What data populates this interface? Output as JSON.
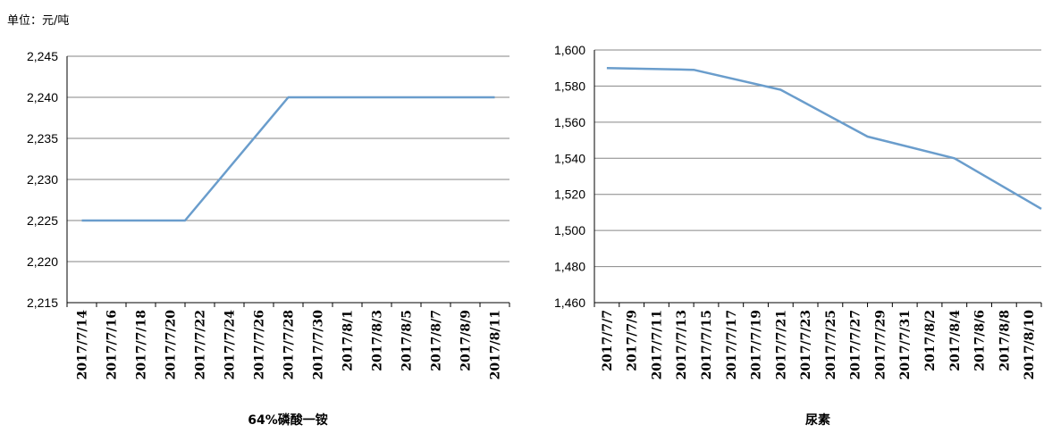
{
  "unit_label": "单位：元/吨",
  "colors": {
    "line": "#6a9dcc",
    "grid": "#868686",
    "axis": "#000000"
  },
  "chart_data": [
    {
      "type": "line",
      "title": "64%磷酸一铵",
      "xlabel": "",
      "ylabel": "",
      "ylim": [
        2215,
        2245
      ],
      "yticks": [
        "2,215",
        "2,220",
        "2,225",
        "2,230",
        "2,235",
        "2,240",
        "2,245"
      ],
      "ytick_values": [
        2215,
        2220,
        2225,
        2230,
        2235,
        2240,
        2245
      ],
      "categories": [
        "2017/7/14",
        "2017/7/16",
        "2017/7/18",
        "2017/7/20",
        "2017/7/22",
        "2017/7/24",
        "2017/7/26",
        "2017/7/28",
        "2017/7/30",
        "2017/8/1",
        "2017/8/3",
        "2017/8/5",
        "2017/8/7",
        "2017/8/9",
        "2017/8/11"
      ],
      "series": [
        {
          "x": [
            "2017/7/14",
            "2017/7/21",
            "2017/7/28",
            "2017/8/11"
          ],
          "values": [
            2225,
            2225,
            2240,
            2240
          ]
        }
      ],
      "grid": true
    },
    {
      "type": "line",
      "title": "尿素",
      "xlabel": "",
      "ylabel": "",
      "ylim": [
        1460,
        1600
      ],
      "yticks": [
        "1,460",
        "1,480",
        "1,500",
        "1,520",
        "1,540",
        "1,560",
        "1,580",
        "1,600"
      ],
      "ytick_values": [
        1460,
        1480,
        1500,
        1520,
        1540,
        1560,
        1580,
        1600
      ],
      "categories": [
        "2017/7/7",
        "2017/7/9",
        "2017/7/11",
        "2017/7/13",
        "2017/7/15",
        "2017/7/17",
        "2017/7/19",
        "2017/7/21",
        "2017/7/23",
        "2017/7/25",
        "2017/7/27",
        "2017/7/29",
        "2017/7/31",
        "2017/8/2",
        "2017/8/4",
        "2017/8/6",
        "2017/8/8",
        "2017/8/10"
      ],
      "series": [
        {
          "x": [
            "2017/7/7",
            "2017/7/14",
            "2017/7/21",
            "2017/7/28",
            "2017/8/4",
            "2017/8/11"
          ],
          "values": [
            1590,
            1589,
            1578,
            1552,
            1540,
            1512
          ]
        }
      ],
      "grid": true
    }
  ]
}
